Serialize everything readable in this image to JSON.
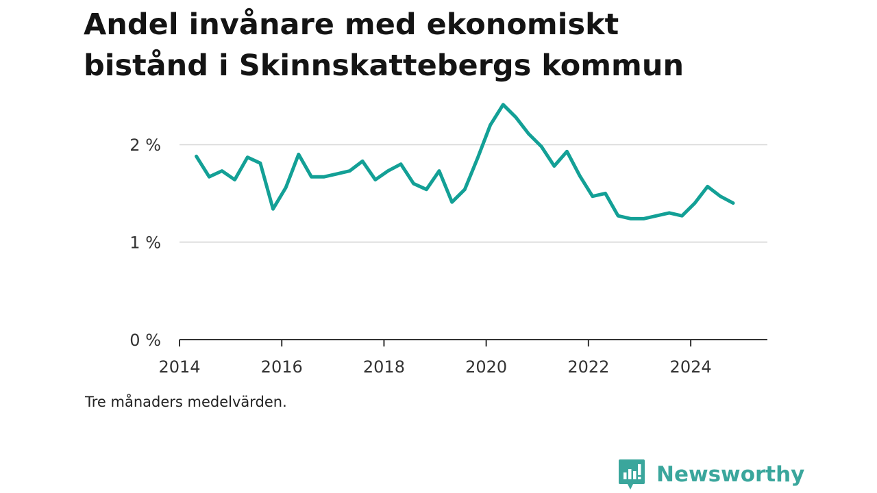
{
  "title_lines": [
    "Andel invånare med ekonomiskt",
    "bistånd i Skinnskattebergs kommun"
  ],
  "note": "Tre månaders medelvärden.",
  "brand": {
    "name": "Newsworthy",
    "icon": "newsworthy-logo-icon",
    "color": "#3aa69c"
  },
  "colors": {
    "line": "#13a096",
    "grid": "#dddddd",
    "axis": "#333333"
  },
  "chart_data": {
    "type": "line",
    "title": "Andel invånare med ekonomiskt bistånd i Skinnskattebergs kommun",
    "xlabel": "",
    "ylabel": "",
    "x_ticks": [
      2014,
      2016,
      2018,
      2020,
      2022,
      2024
    ],
    "y_ticks": [
      {
        "value": 0,
        "label": "0 %"
      },
      {
        "value": 1,
        "label": "1 %"
      },
      {
        "value": 2,
        "label": "2 %"
      }
    ],
    "xlim": [
      2014.0,
      2025.5
    ],
    "ylim": [
      0,
      2.5
    ],
    "grid": "horizontal",
    "series": [
      {
        "x": [
          2014.33,
          2014.58,
          2014.83,
          2015.08,
          2015.33,
          2015.58,
          2015.83,
          2016.08,
          2016.33,
          2016.58,
          2016.83,
          2017.08,
          2017.33,
          2017.58,
          2017.83,
          2018.08,
          2018.33,
          2018.58,
          2018.83,
          2019.08,
          2019.33,
          2019.58,
          2019.83,
          2020.08,
          2020.33,
          2020.58,
          2020.83,
          2021.08,
          2021.33,
          2021.58,
          2021.83,
          2022.08,
          2022.33,
          2022.58,
          2022.83,
          2023.08,
          2023.33,
          2023.58,
          2023.83,
          2024.08,
          2024.33,
          2024.58,
          2024.83
        ],
        "values": [
          1.88,
          1.67,
          1.73,
          1.64,
          1.87,
          1.81,
          1.34,
          1.56,
          1.9,
          1.67,
          1.67,
          1.7,
          1.73,
          1.83,
          1.64,
          1.73,
          1.8,
          1.6,
          1.54,
          1.73,
          1.41,
          1.54,
          1.86,
          2.2,
          2.41,
          2.28,
          2.11,
          1.98,
          1.78,
          1.93,
          1.68,
          1.47,
          1.5,
          1.27,
          1.24,
          1.24,
          1.27,
          1.3,
          1.27,
          1.4,
          1.57,
          1.47,
          1.4
        ]
      }
    ]
  }
}
